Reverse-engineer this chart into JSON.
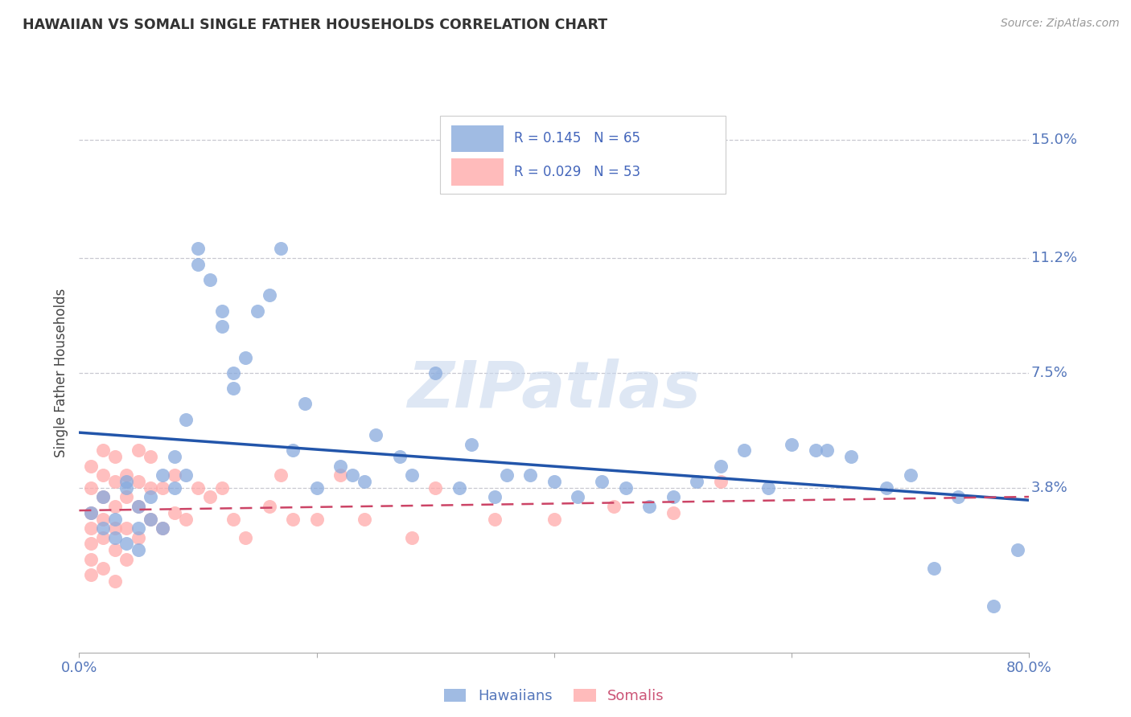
{
  "title": "HAWAIIAN VS SOMALI SINGLE FATHER HOUSEHOLDS CORRELATION CHART",
  "source": "Source: ZipAtlas.com",
  "ylabel": "Single Father Households",
  "xlim": [
    0.0,
    0.8
  ],
  "ylim": [
    -0.015,
    0.165
  ],
  "xticks": [
    0.0,
    0.2,
    0.4,
    0.6,
    0.8
  ],
  "xticklabels": [
    "0.0%",
    "",
    "",
    "",
    "80.0%"
  ],
  "yticks": [
    0.0,
    0.038,
    0.075,
    0.112,
    0.15
  ],
  "yticklabels": [
    "",
    "3.8%",
    "7.5%",
    "11.2%",
    "15.0%"
  ],
  "grid_color": "#c8c8d0",
  "background_color": "#ffffff",
  "watermark_text": "ZIPatlas",
  "hawaiian_color": "#88aadd",
  "somali_color": "#ffaaaa",
  "line_hawaiian_color": "#2255aa",
  "line_somali_color": "#cc4466",
  "hawaiian_x": [
    0.01,
    0.02,
    0.02,
    0.03,
    0.03,
    0.04,
    0.04,
    0.04,
    0.05,
    0.05,
    0.05,
    0.06,
    0.06,
    0.07,
    0.07,
    0.08,
    0.08,
    0.09,
    0.09,
    0.1,
    0.1,
    0.11,
    0.12,
    0.12,
    0.13,
    0.13,
    0.14,
    0.15,
    0.16,
    0.17,
    0.18,
    0.19,
    0.2,
    0.22,
    0.23,
    0.24,
    0.25,
    0.27,
    0.28,
    0.3,
    0.32,
    0.33,
    0.35,
    0.36,
    0.38,
    0.4,
    0.42,
    0.44,
    0.46,
    0.48,
    0.5,
    0.52,
    0.54,
    0.56,
    0.58,
    0.6,
    0.62,
    0.63,
    0.65,
    0.68,
    0.7,
    0.72,
    0.74,
    0.77,
    0.79
  ],
  "hawaiian_y": [
    0.03,
    0.025,
    0.035,
    0.028,
    0.022,
    0.04,
    0.038,
    0.02,
    0.032,
    0.025,
    0.018,
    0.035,
    0.028,
    0.042,
    0.025,
    0.048,
    0.038,
    0.06,
    0.042,
    0.11,
    0.115,
    0.105,
    0.09,
    0.095,
    0.07,
    0.075,
    0.08,
    0.095,
    0.1,
    0.115,
    0.05,
    0.065,
    0.038,
    0.045,
    0.042,
    0.04,
    0.055,
    0.048,
    0.042,
    0.075,
    0.038,
    0.052,
    0.035,
    0.042,
    0.042,
    0.04,
    0.035,
    0.04,
    0.038,
    0.032,
    0.035,
    0.04,
    0.045,
    0.05,
    0.038,
    0.052,
    0.05,
    0.05,
    0.048,
    0.038,
    0.042,
    0.012,
    0.035,
    0.0,
    0.018
  ],
  "somali_x": [
    0.01,
    0.01,
    0.01,
    0.01,
    0.01,
    0.01,
    0.01,
    0.02,
    0.02,
    0.02,
    0.02,
    0.02,
    0.02,
    0.03,
    0.03,
    0.03,
    0.03,
    0.03,
    0.03,
    0.04,
    0.04,
    0.04,
    0.04,
    0.05,
    0.05,
    0.05,
    0.05,
    0.06,
    0.06,
    0.06,
    0.07,
    0.07,
    0.08,
    0.08,
    0.09,
    0.1,
    0.11,
    0.12,
    0.13,
    0.14,
    0.16,
    0.17,
    0.18,
    0.2,
    0.22,
    0.24,
    0.28,
    0.3,
    0.35,
    0.4,
    0.45,
    0.5,
    0.54
  ],
  "somali_y": [
    0.045,
    0.038,
    0.03,
    0.025,
    0.02,
    0.015,
    0.01,
    0.05,
    0.042,
    0.035,
    0.028,
    0.022,
    0.012,
    0.048,
    0.04,
    0.032,
    0.025,
    0.018,
    0.008,
    0.042,
    0.035,
    0.025,
    0.015,
    0.05,
    0.04,
    0.032,
    0.022,
    0.048,
    0.038,
    0.028,
    0.038,
    0.025,
    0.042,
    0.03,
    0.028,
    0.038,
    0.035,
    0.038,
    0.028,
    0.022,
    0.032,
    0.042,
    0.028,
    0.028,
    0.042,
    0.028,
    0.022,
    0.038,
    0.028,
    0.028,
    0.032,
    0.03,
    0.04
  ]
}
